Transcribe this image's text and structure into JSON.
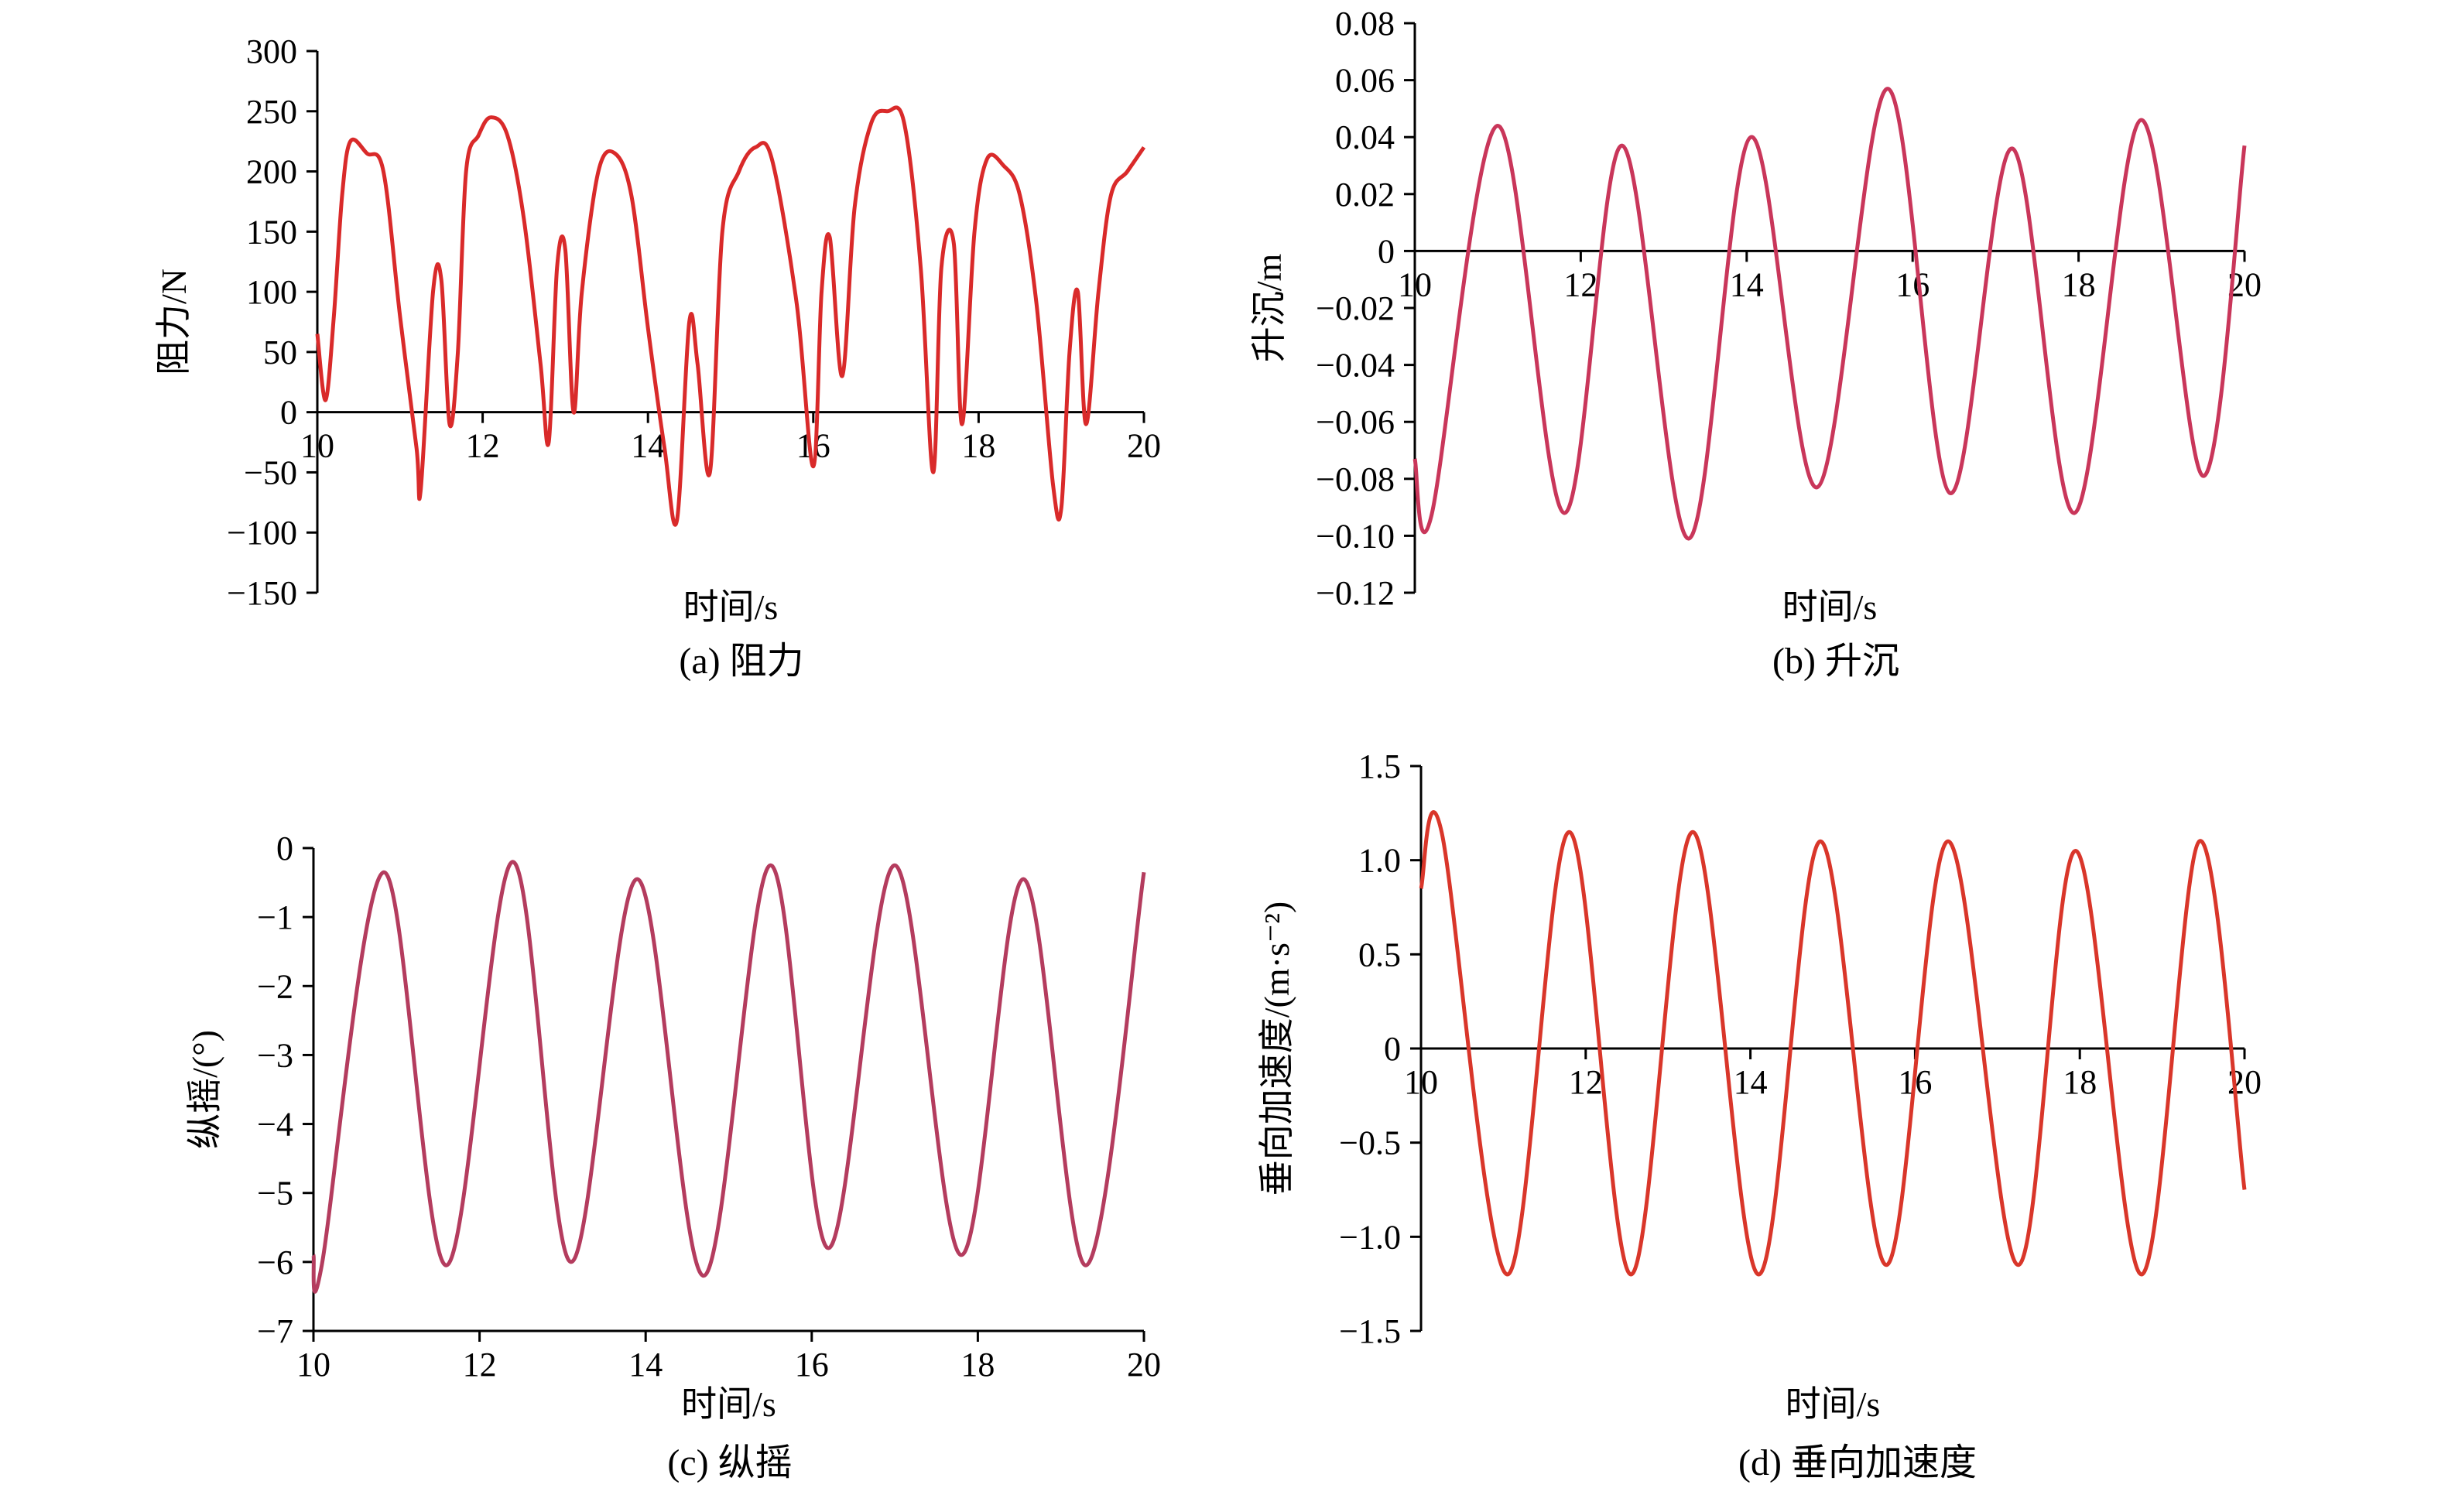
{
  "chart_data": [
    {
      "id": "a",
      "type": "line",
      "caption": "(a) 阻力",
      "xlabel": "时间/s",
      "ylabel": "阻力/N",
      "xlim": [
        10,
        20
      ],
      "ylim": [
        -150,
        300
      ],
      "xticks": [
        10,
        12,
        14,
        16,
        18,
        20
      ],
      "yticks": [
        -150,
        -100,
        -50,
        0,
        50,
        100,
        150,
        200,
        250,
        300
      ],
      "ytick_labels": [
        "−150",
        "−100",
        "−50",
        "0",
        "50",
        "100",
        "150",
        "200",
        "250",
        "300"
      ],
      "color": "#d92a2a",
      "series": [
        {
          "x": [
            10.0,
            10.1,
            10.2,
            10.3,
            10.4,
            10.6,
            10.8,
            11.0,
            11.2,
            11.25,
            11.4,
            11.5,
            11.6,
            11.7,
            11.8,
            11.95,
            12.1,
            12.3,
            12.5,
            12.7,
            12.8,
            12.9,
            13.0,
            13.1,
            13.2,
            13.4,
            13.6,
            13.8,
            14.0,
            14.2,
            14.35,
            14.5,
            14.6,
            14.75,
            14.9,
            15.1,
            15.3,
            15.5,
            15.8,
            16.0,
            16.1,
            16.2,
            16.35,
            16.5,
            16.7,
            16.9,
            17.1,
            17.3,
            17.45,
            17.55,
            17.7,
            17.8,
            17.95,
            18.1,
            18.3,
            18.5,
            18.7,
            18.9,
            19.0,
            19.1,
            19.2,
            19.3,
            19.45,
            19.6,
            19.8,
            20.0
          ],
          "y": [
            65,
            10,
            80,
            180,
            225,
            215,
            200,
            80,
            -30,
            -65,
            100,
            110,
            -10,
            50,
            200,
            230,
            245,
            230,
            160,
            40,
            -25,
            120,
            135,
            0,
            100,
            200,
            215,
            180,
            70,
            -30,
            -90,
            75,
            40,
            -50,
            150,
            200,
            220,
            210,
            90,
            -45,
            100,
            145,
            30,
            170,
            240,
            250,
            240,
            120,
            -50,
            120,
            140,
            -10,
            150,
            210,
            205,
            180,
            90,
            -60,
            -80,
            50,
            100,
            -10,
            100,
            180,
            200,
            220
          ]
        }
      ]
    },
    {
      "id": "b",
      "type": "line",
      "caption": "(b) 升沉",
      "xlabel": "时间/s",
      "ylabel": "升沉/m",
      "xlim": [
        10,
        20
      ],
      "ylim": [
        -0.12,
        0.08
      ],
      "xticks": [
        10,
        12,
        14,
        16,
        18,
        20
      ],
      "yticks": [
        -0.12,
        -0.1,
        -0.08,
        -0.06,
        -0.04,
        -0.02,
        0,
        0.02,
        0.04,
        0.06,
        0.08
      ],
      "ytick_labels": [
        "−0.12",
        "−0.10",
        "−0.08",
        "−0.06",
        "−0.04",
        "−0.02",
        "0",
        "0.02",
        "0.04",
        "0.06",
        "0.08"
      ],
      "color": "#c9365a",
      "series": [
        {
          "x": [
            10.0,
            10.2,
            11.0,
            11.8,
            12.5,
            13.3,
            14.05,
            14.85,
            15.7,
            16.45,
            17.2,
            17.95,
            18.75,
            19.5,
            20.0
          ],
          "y": [
            -0.073,
            -0.093,
            0.044,
            -0.092,
            0.037,
            -0.101,
            0.04,
            -0.083,
            0.057,
            -0.085,
            0.036,
            -0.092,
            0.046,
            -0.079,
            0.037
          ]
        }
      ]
    },
    {
      "id": "c",
      "type": "line",
      "caption": "(c) 纵摇",
      "xlabel": "时间/s",
      "ylabel": "纵摇/(°)",
      "xlim": [
        10,
        20
      ],
      "ylim": [
        -7,
        0
      ],
      "xticks": [
        10,
        12,
        14,
        16,
        18,
        20
      ],
      "yticks": [
        -7,
        -6,
        -5,
        -4,
        -3,
        -2,
        -1,
        0
      ],
      "ytick_labels": [
        "−7",
        "−6",
        "−5",
        "−4",
        "−3",
        "−2",
        "−1",
        "0"
      ],
      "color": "#b43c5e",
      "series": [
        {
          "x": [
            10.0,
            10.1,
            10.85,
            11.6,
            12.4,
            13.1,
            13.9,
            14.7,
            15.5,
            16.2,
            17.0,
            17.8,
            18.55,
            19.3,
            20.0
          ],
          "y": [
            -5.9,
            -6.05,
            -0.35,
            -6.05,
            -0.2,
            -6.0,
            -0.45,
            -6.2,
            -0.25,
            -5.8,
            -0.25,
            -5.9,
            -0.45,
            -6.05,
            -0.35
          ]
        }
      ]
    },
    {
      "id": "d",
      "type": "line",
      "caption": "(d) 垂向加速度",
      "xlabel": "时间/s",
      "ylabel": "垂向加速度/(m·s⁻²)",
      "xlim": [
        10,
        20
      ],
      "ylim": [
        -1.5,
        1.5
      ],
      "xticks": [
        10,
        12,
        14,
        16,
        18,
        20
      ],
      "yticks": [
        -1.5,
        -1.0,
        -0.5,
        0,
        0.5,
        1.0,
        1.5
      ],
      "ytick_labels": [
        "−1.5",
        "−1.0",
        "−0.5",
        "0",
        "0.5",
        "1.0",
        "1.5"
      ],
      "color": "#d9362a",
      "series": [
        {
          "x": [
            10.0,
            10.25,
            11.05,
            11.8,
            12.55,
            13.3,
            14.1,
            14.85,
            15.65,
            16.4,
            17.25,
            17.95,
            18.75,
            19.45,
            20.0
          ],
          "y": [
            0.85,
            1.15,
            -1.2,
            1.15,
            -1.2,
            1.15,
            -1.2,
            1.1,
            -1.15,
            1.1,
            -1.15,
            1.05,
            -1.2,
            1.1,
            -0.75
          ]
        }
      ]
    }
  ]
}
